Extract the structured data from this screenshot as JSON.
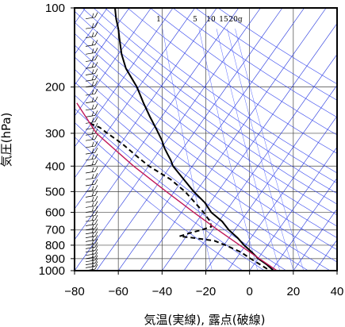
{
  "chart_data": {
    "type": "line",
    "title": "",
    "xlabel": "気温(実線), 露点(破線)",
    "ylabel": "気圧(hPa)",
    "xlim": [
      -80,
      40
    ],
    "ylim": [
      1000,
      100
    ],
    "y_scale": "log",
    "grid": true,
    "x_ticks": [
      -80,
      -60,
      -40,
      -20,
      0,
      20,
      40
    ],
    "x_tick_labels": [
      "−80",
      "−60",
      "−40",
      "−20",
      "0",
      "20",
      "40"
    ],
    "y_ticks": [
      100,
      200,
      300,
      400,
      500,
      600,
      700,
      800,
      900,
      1000
    ],
    "y_tick_labels": [
      "100",
      "200",
      "300",
      "400",
      "500",
      "600",
      "700",
      "800",
      "900",
      "1000"
    ],
    "mixing_ratio_labels": [
      "1",
      "5",
      "10",
      "15",
      "20g"
    ],
    "mixing_ratio_values": [
      1,
      5,
      10,
      15,
      20
    ],
    "isotherm_skew_degC_per_decade": 85,
    "isotherm_values": [
      -240,
      -230,
      -220,
      -210,
      -200,
      -190,
      -180,
      -170,
      -160,
      -150,
      -140,
      -130,
      -120,
      -110,
      -100,
      -90,
      -80,
      -70,
      -60,
      -50,
      -40,
      -30,
      -20,
      -10,
      0,
      10,
      20,
      30,
      40
    ],
    "adiabat_theta_K": [
      270,
      280,
      290,
      300,
      310,
      320,
      330,
      340,
      350,
      360,
      370,
      380,
      390,
      400,
      420,
      440,
      460,
      480,
      500
    ],
    "series": [
      {
        "kind": "temperature",
        "style": "solid",
        "color": "#000000",
        "points": [
          [
            100,
            -61.5
          ],
          [
            110,
            -61.0
          ],
          [
            120,
            -60.0
          ],
          [
            130,
            -59.5
          ],
          [
            150,
            -58.5
          ],
          [
            170,
            -56.5
          ],
          [
            200,
            -51.5
          ],
          [
            230,
            -48.5
          ],
          [
            260,
            -45.5
          ],
          [
            290,
            -42.5
          ],
          [
            320,
            -40.0
          ],
          [
            340,
            -39.0
          ],
          [
            360,
            -37.5
          ],
          [
            380,
            -36.0
          ],
          [
            400,
            -35.0
          ],
          [
            450,
            -30.0
          ],
          [
            500,
            -25.5
          ],
          [
            550,
            -20.5
          ],
          [
            600,
            -17.5
          ],
          [
            650,
            -12.5
          ],
          [
            700,
            -9.5
          ],
          [
            750,
            -5.5
          ],
          [
            800,
            -2.5
          ],
          [
            850,
            1.0
          ],
          [
            900,
            4.0
          ],
          [
            950,
            8.0
          ],
          [
            1000,
            11.0
          ]
        ]
      },
      {
        "kind": "dewpoint",
        "style": "dashed",
        "color": "#000000",
        "points": [
          [
            275,
            -73.0
          ],
          [
            285,
            -68.5
          ],
          [
            300,
            -65.0
          ],
          [
            330,
            -58.0
          ],
          [
            370,
            -51.0
          ],
          [
            400,
            -46.0
          ],
          [
            450,
            -36.0
          ],
          [
            500,
            -29.5
          ],
          [
            550,
            -25.0
          ],
          [
            600,
            -21.0
          ],
          [
            650,
            -18.0
          ],
          [
            680,
            -17.5
          ],
          [
            700,
            -22.0
          ],
          [
            720,
            -27.5
          ],
          [
            740,
            -32.0
          ],
          [
            750,
            -26.0
          ],
          [
            770,
            -16.0
          ],
          [
            800,
            -11.0
          ],
          [
            850,
            -4.0
          ],
          [
            900,
            0.5
          ],
          [
            950,
            5.0
          ],
          [
            990,
            8.5
          ]
        ]
      },
      {
        "kind": "parcel",
        "style": "solid",
        "color": "#c0185a",
        "points": [
          [
            230,
            -79.0
          ],
          [
            300,
            -70.0
          ],
          [
            400,
            -53.0
          ],
          [
            500,
            -38.0
          ],
          [
            600,
            -25.5
          ],
          [
            700,
            -14.5
          ],
          [
            800,
            -4.5
          ],
          [
            900,
            4.5
          ],
          [
            1000,
            12.5
          ]
        ]
      }
    ],
    "wind_barbs": {
      "present": true,
      "pressure_levels": [
        100,
        110,
        120,
        130,
        140,
        150,
        160,
        170,
        180,
        190,
        200,
        215,
        230,
        245,
        260,
        275,
        290,
        305,
        320,
        340,
        360,
        380,
        400,
        425,
        450,
        475,
        500,
        525,
        550,
        575,
        600,
        625,
        650,
        675,
        700,
        725,
        750,
        775,
        800,
        825,
        850,
        875,
        900,
        925,
        950,
        975,
        1000
      ]
    }
  }
}
